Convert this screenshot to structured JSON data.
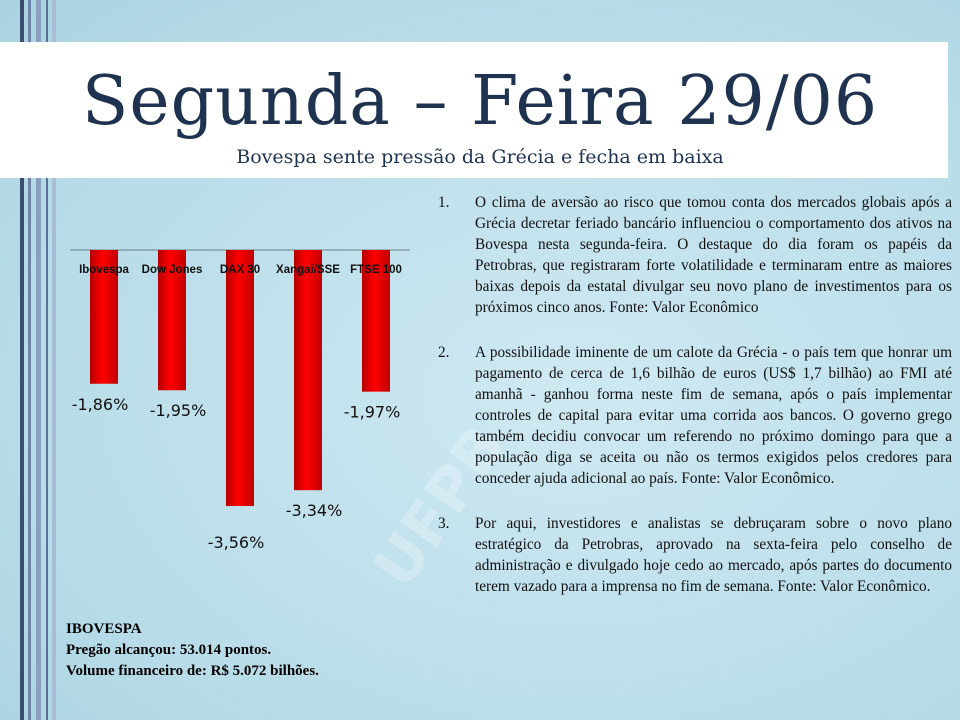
{
  "slide": {
    "title": "Segunda – Feira 29/06",
    "subtitle": "Bovespa sente pressão da Grécia e fecha em baixa",
    "watermark": "UFPB"
  },
  "chart_data": {
    "type": "bar",
    "categories": [
      "Ibovespa",
      "Dow Jones",
      "DAX 30",
      "Xangai/SSE",
      "FTSE 100"
    ],
    "values": [
      -1.86,
      -1.95,
      -3.56,
      -3.34,
      -1.97
    ],
    "data_labels": [
      "-1,86%",
      "-1,95%",
      "-3,56%",
      "-3,34%",
      "-1,97%"
    ],
    "ylim": [
      -3.56,
      0
    ],
    "bar_color": "#ff0000",
    "title": "",
    "xlabel": "",
    "ylabel": ""
  },
  "ibovespa": {
    "heading": "IBOVESPA",
    "line1": "Pregão alcançou: 53.014 pontos.",
    "line2": "Volume financeiro de: R$ 5.072 bilhões."
  },
  "news": [
    {
      "num": "1.",
      "text": "O clima de aversão ao risco que tomou conta dos mercados globais após a Grécia decretar feriado bancário influenciou o comportamento dos ativos na Bovespa nesta segunda-feira. O destaque do dia foram os papéis da Petrobras, que registraram forte volatilidade e terminaram entre as maiores baixas depois da estatal divulgar seu novo plano de investimentos para os próximos cinco anos. Fonte: Valor Econômico"
    },
    {
      "num": "2.",
      "text": "A possibilidade iminente de um calote da Grécia - o país tem que honrar um pagamento de cerca de 1,6 bilhão de euros (US$ 1,7 bilhão) ao FMI até amanhã - ganhou forma neste fim de semana, após o país implementar controles de capital para evitar uma corrida aos bancos. O governo grego também decidiu convocar um referendo no próximo domingo para que a população diga se aceita ou não os termos exigidos pelos credores para conceder ajuda adicional ao país. Fonte: Valor Econômico."
    },
    {
      "num": "3.",
      "text": "Por aqui, investidores e analistas se debruçaram sobre o novo plano estratégico da Petrobras, aprovado na sexta-feira pelo conselho de administração e divulgado hoje cedo ao mercado, após partes do documento terem vazado para a imprensa no fim de semana. Fonte: Valor Econômico."
    }
  ]
}
